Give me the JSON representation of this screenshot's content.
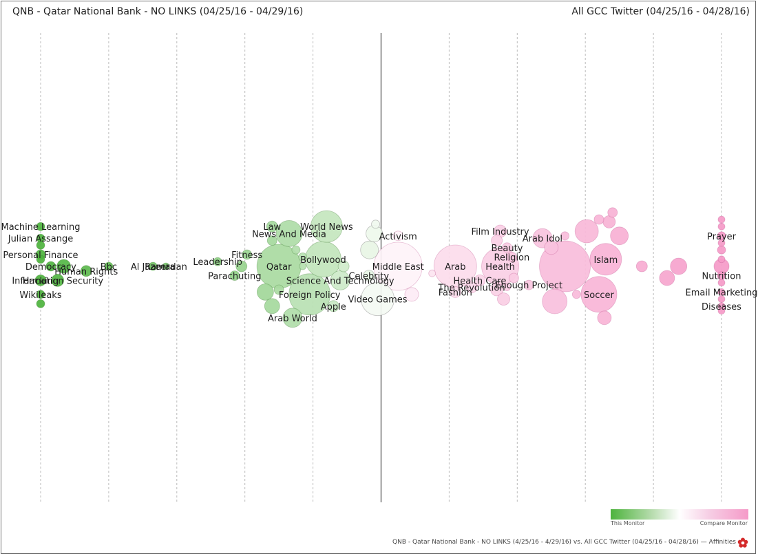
{
  "header": {
    "left_title": "QNB - Qatar National Bank - NO LINKS (04/25/16 - 04/29/16)",
    "right_title": "All GCC Twitter (04/25/16 - 04/28/16)"
  },
  "legend": {
    "left_label": "This Monitor",
    "right_label": "Compare Monitor"
  },
  "footer": {
    "text": "QNB - Qatar National Bank - NO LINKS (4/25/16 - 4/29/16) vs. All GCC Twitter (04/25/16 - 04/28/16) — Affinities"
  },
  "colors": {
    "this_monitor": "#4db33d",
    "neutral": "#ffffff",
    "compare_monitor": "#f59ac8",
    "center_line": "#555555",
    "gridline": "#bbbbbb"
  },
  "icons": {
    "footer_logo": "affinities-flower-icon"
  },
  "chart_data": {
    "type": "scatter",
    "title": "",
    "xlabel": "",
    "ylabel": "",
    "xlim": [
      -5,
      5
    ],
    "ylim": [
      -1,
      1
    ],
    "grid": "vertical dashed lines at each integer",
    "center_line": 0,
    "legend_placement": "bottom-right",
    "series": [
      {
        "label": "Machine Learning",
        "x": -5.0,
        "y": 0.17,
        "r": 6
      },
      {
        "label": "Julian Assange",
        "x": -5.0,
        "y": 0.12,
        "r": 6
      },
      {
        "label": "",
        "x": -5.0,
        "y": 0.09,
        "r": 6
      },
      {
        "label": "Personal Finance",
        "x": -5.0,
        "y": 0.05,
        "r": 7
      },
      {
        "label": "Democracy",
        "x": -4.85,
        "y": 0.0,
        "r": 7
      },
      {
        "label": "",
        "x": -5.0,
        "y": 0.03,
        "r": 6
      },
      {
        "label": "Hacking",
        "x": -5.0,
        "y": -0.06,
        "r": 8
      },
      {
        "label": "Information Security",
        "x": -4.75,
        "y": -0.06,
        "r": 9
      },
      {
        "label": "Wikileaks",
        "x": -5.0,
        "y": -0.12,
        "r": 6
      },
      {
        "label": "",
        "x": -5.0,
        "y": -0.16,
        "r": 6
      },
      {
        "label": "Human Rights",
        "x": -4.33,
        "y": -0.02,
        "r": 8
      },
      {
        "label": "",
        "x": -4.66,
        "y": 0.0,
        "r": 10
      },
      {
        "label": "Bbc",
        "x": -4.0,
        "y": 0.0,
        "r": 6
      },
      {
        "label": "Al Jazeera",
        "x": -3.35,
        "y": 0.0,
        "r": 6
      },
      {
        "label": "Ramadan",
        "x": -3.16,
        "y": 0.0,
        "r": 5
      },
      {
        "label": "Leadership",
        "x": -2.4,
        "y": 0.02,
        "r": 6
      },
      {
        "label": "Fitness",
        "x": -1.97,
        "y": 0.05,
        "r": 7
      },
      {
        "label": "",
        "x": -2.05,
        "y": 0.0,
        "r": 8
      },
      {
        "label": "Parachuting",
        "x": -2.15,
        "y": -0.04,
        "r": 7
      },
      {
        "label": "Law",
        "x": -1.6,
        "y": 0.17,
        "r": 8
      },
      {
        "label": "News And Media",
        "x": -1.35,
        "y": 0.14,
        "r": 19
      },
      {
        "label": "",
        "x": -1.6,
        "y": 0.11,
        "r": 7
      },
      {
        "label": "World News",
        "x": -0.8,
        "y": 0.17,
        "r": 23
      },
      {
        "label": "",
        "x": -1.25,
        "y": 0.07,
        "r": 6
      },
      {
        "label": "",
        "x": -1.15,
        "y": 0.04,
        "r": 6
      },
      {
        "label": "Qatar",
        "x": -1.5,
        "y": 0.0,
        "r": 32
      },
      {
        "label": "Bollywood",
        "x": -0.85,
        "y": 0.03,
        "r": 26
      },
      {
        "label": "",
        "x": -0.55,
        "y": 0.0,
        "r": 8
      },
      {
        "label": "Science And Technology",
        "x": -0.6,
        "y": -0.06,
        "r": 14
      },
      {
        "label": "",
        "x": -1.15,
        "y": 0.0,
        "r": 5
      },
      {
        "label": "",
        "x": -1.7,
        "y": -0.11,
        "r": 12
      },
      {
        "label": "",
        "x": -1.5,
        "y": -0.1,
        "r": 7
      },
      {
        "label": "Foreign Policy",
        "x": -1.05,
        "y": -0.12,
        "r": 30
      },
      {
        "label": "",
        "x": -1.6,
        "y": -0.17,
        "r": 11
      },
      {
        "label": "Apple",
        "x": -0.7,
        "y": -0.17,
        "r": 8
      },
      {
        "label": "Arab World",
        "x": -1.3,
        "y": -0.22,
        "r": 14
      },
      {
        "label": "",
        "x": -0.08,
        "y": 0.18,
        "r": 6
      },
      {
        "label": "",
        "x": -0.1,
        "y": 0.14,
        "r": 12
      },
      {
        "label": "",
        "x": -0.17,
        "y": 0.07,
        "r": 13
      },
      {
        "label": "Celebrity",
        "x": -0.18,
        "y": -0.04,
        "r": 8
      },
      {
        "label": "Activism",
        "x": 0.25,
        "y": 0.13,
        "r": 7
      },
      {
        "label": "Middle East",
        "x": 0.25,
        "y": 0.0,
        "r": 35
      },
      {
        "label": "Video Games",
        "x": -0.05,
        "y": -0.14,
        "r": 24
      },
      {
        "label": "",
        "x": 0.45,
        "y": -0.12,
        "r": 10
      },
      {
        "label": "",
        "x": 0.75,
        "y": -0.03,
        "r": 5
      },
      {
        "label": "Arab",
        "x": 1.09,
        "y": 0.0,
        "r": 31
      },
      {
        "label": "Health Care",
        "x": 1.45,
        "y": -0.06,
        "r": 8
      },
      {
        "label": "The Revolution",
        "x": 1.33,
        "y": -0.09,
        "r": 8
      },
      {
        "label": "Fashion",
        "x": 1.09,
        "y": -0.11,
        "r": 8
      },
      {
        "label": "Film Industry",
        "x": 1.75,
        "y": 0.15,
        "r": 9
      },
      {
        "label": "Beauty",
        "x": 1.85,
        "y": 0.08,
        "r": 7
      },
      {
        "label": "",
        "x": 1.7,
        "y": 0.11,
        "r": 8
      },
      {
        "label": "Religion",
        "x": 1.92,
        "y": 0.04,
        "r": 7
      },
      {
        "label": "Health",
        "x": 1.75,
        "y": 0.0,
        "r": 27
      },
      {
        "label": "",
        "x": 1.7,
        "y": -0.1,
        "r": 9
      },
      {
        "label": "",
        "x": 1.8,
        "y": -0.14,
        "r": 9
      },
      {
        "label": "Enough Project",
        "x": 2.17,
        "y": -0.08,
        "r": 7
      },
      {
        "label": "",
        "x": 1.85,
        "y": -0.09,
        "r": 5
      },
      {
        "label": "",
        "x": 1.95,
        "y": -0.05,
        "r": 7
      },
      {
        "label": "Arab Idol",
        "x": 2.37,
        "y": 0.12,
        "r": 14
      },
      {
        "label": "",
        "x": 2.5,
        "y": 0.08,
        "r": 10
      },
      {
        "label": "",
        "x": 2.7,
        "y": 0.13,
        "r": 6
      },
      {
        "label": "",
        "x": 2.55,
        "y": -0.15,
        "r": 18
      },
      {
        "label": "",
        "x": 2.87,
        "y": -0.12,
        "r": 6
      },
      {
        "label": "",
        "x": 2.7,
        "y": 0.0,
        "r": 37
      },
      {
        "label": "Islam",
        "x": 3.3,
        "y": 0.03,
        "r": 23
      },
      {
        "label": "",
        "x": 3.02,
        "y": 0.15,
        "r": 17
      },
      {
        "label": "",
        "x": 3.2,
        "y": 0.2,
        "r": 7
      },
      {
        "label": "",
        "x": 3.35,
        "y": 0.19,
        "r": 9
      },
      {
        "label": "",
        "x": 3.4,
        "y": 0.23,
        "r": 7
      },
      {
        "label": "",
        "x": 3.5,
        "y": 0.13,
        "r": 13
      },
      {
        "label": "Soccer",
        "x": 3.2,
        "y": -0.12,
        "r": 26
      },
      {
        "label": "",
        "x": 3.28,
        "y": -0.22,
        "r": 10
      },
      {
        "label": "",
        "x": 3.83,
        "y": 0.0,
        "r": 8
      },
      {
        "label": "",
        "x": 4.2,
        "y": -0.05,
        "r": 11
      },
      {
        "label": "",
        "x": 4.37,
        "y": 0.0,
        "r": 12
      },
      {
        "label": "Prayer",
        "x": 5.0,
        "y": 0.13,
        "r": 6
      },
      {
        "label": "",
        "x": 5.0,
        "y": 0.2,
        "r": 5
      },
      {
        "label": "",
        "x": 5.0,
        "y": 0.17,
        "r": 5
      },
      {
        "label": "",
        "x": 5.0,
        "y": 0.1,
        "r": 5
      },
      {
        "label": "",
        "x": 5.0,
        "y": 0.07,
        "r": 6
      },
      {
        "label": "",
        "x": 5.0,
        "y": 0.03,
        "r": 5
      },
      {
        "label": "",
        "x": 5.0,
        "y": 0.0,
        "r": 11
      },
      {
        "label": "Nutrition",
        "x": 5.0,
        "y": -0.04,
        "r": 6
      },
      {
        "label": "",
        "x": 5.0,
        "y": -0.07,
        "r": 5
      },
      {
        "label": "Email Marketing",
        "x": 5.0,
        "y": -0.11,
        "r": 5
      },
      {
        "label": "",
        "x": 5.0,
        "y": -0.14,
        "r": 5
      },
      {
        "label": "Diseases",
        "x": 5.0,
        "y": -0.17,
        "r": 5
      },
      {
        "label": "",
        "x": 5.0,
        "y": -0.19,
        "r": 5
      }
    ]
  }
}
